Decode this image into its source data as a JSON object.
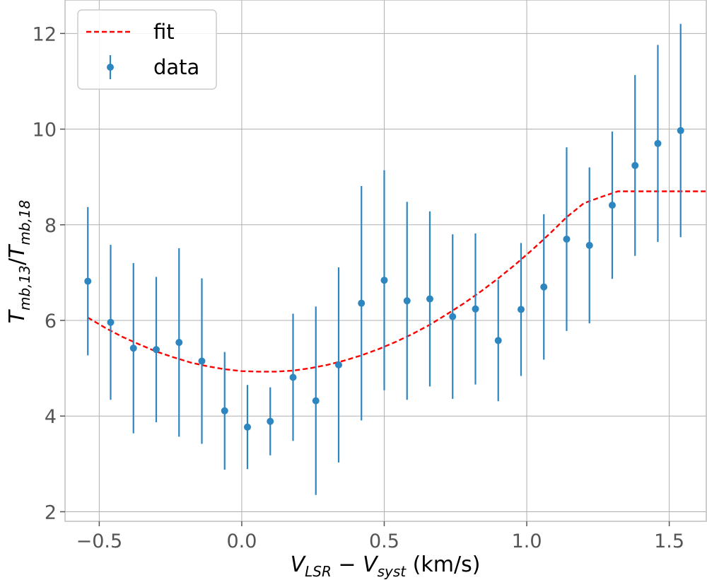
{
  "chart_data": {
    "type": "scatter",
    "title": "",
    "xlabel": "V_LSR − V_syst (km/s)",
    "ylabel": "T_mb,13/T_mb,18",
    "xlabel_parts": {
      "v1": "V",
      "sub1": "LSR",
      "minus": " − ",
      "v2": "V",
      "sub2": "syst",
      "unit": " (km/s)"
    },
    "ylabel_parts": {
      "t1": "T",
      "sub1": "mb,13",
      "slash": "/",
      "t2": "T",
      "sub2": "mb,18"
    },
    "xlim": [
      -0.62,
      1.63
    ],
    "ylim": [
      1.8,
      12.7
    ],
    "xticks": [
      -0.5,
      0.0,
      0.5,
      1.0,
      1.5
    ],
    "xtick_labels": [
      "−0.5",
      "0.0",
      "0.5",
      "1.0",
      "1.5"
    ],
    "yticks": [
      2,
      4,
      6,
      8,
      10,
      12
    ],
    "ytick_labels": [
      "2",
      "4",
      "6",
      "8",
      "10",
      "12"
    ],
    "grid": true,
    "legend": {
      "position": "top-left",
      "entries": [
        {
          "label": "fit",
          "style": "dashed-line",
          "color": "#ff0000"
        },
        {
          "label": "data",
          "style": "errorbar-point",
          "color": "#2e86c1"
        }
      ]
    },
    "data_series": {
      "name": "data",
      "color": "#2e86c1",
      "x": [
        -0.54,
        -0.46,
        -0.38,
        -0.3,
        -0.22,
        -0.14,
        -0.06,
        0.02,
        0.1,
        0.18,
        0.26,
        0.34,
        0.42,
        0.5,
        0.58,
        0.66,
        0.74,
        0.82,
        0.9,
        0.98,
        1.06,
        1.14,
        1.22,
        1.3,
        1.38,
        1.46,
        1.54
      ],
      "y": [
        6.82,
        5.96,
        5.42,
        5.39,
        5.54,
        5.15,
        4.11,
        3.77,
        3.89,
        4.81,
        4.32,
        5.07,
        6.36,
        6.84,
        6.41,
        6.45,
        6.08,
        6.24,
        5.58,
        6.23,
        6.7,
        7.7,
        7.57,
        8.41,
        9.24,
        9.7,
        9.97
      ],
      "yerr": [
        1.55,
        1.62,
        1.78,
        1.52,
        1.97,
        1.73,
        1.23,
        0.88,
        0.71,
        1.33,
        1.97,
        2.04,
        2.45,
        2.3,
        2.07,
        1.83,
        1.72,
        1.58,
        1.27,
        1.39,
        1.52,
        1.92,
        1.63,
        1.54,
        1.89,
        2.06,
        2.23
      ]
    },
    "fit_series": {
      "name": "fit",
      "color": "#ff0000",
      "style": "dashed",
      "x": [
        -0.54,
        -0.48,
        -0.42,
        -0.36,
        -0.3,
        -0.24,
        -0.18,
        -0.12,
        -0.06,
        0.0,
        0.06,
        0.12,
        0.18,
        0.24,
        0.3,
        0.36,
        0.42,
        0.48,
        0.54,
        0.6,
        0.66,
        0.72,
        0.78,
        0.84,
        0.9,
        0.96,
        1.02,
        1.08,
        1.14,
        1.2,
        1.26,
        1.32,
        1.4,
        1.5,
        1.63
      ],
      "y": [
        6.06,
        5.85,
        5.66,
        5.5,
        5.35,
        5.23,
        5.12,
        5.04,
        4.98,
        4.94,
        4.93,
        4.93,
        4.95,
        5.0,
        5.07,
        5.16,
        5.27,
        5.4,
        5.55,
        5.72,
        5.91,
        6.13,
        6.36,
        6.61,
        6.88,
        7.17,
        7.48,
        7.81,
        8.16,
        8.45,
        8.58,
        8.7,
        8.7,
        8.7,
        8.7
      ]
    }
  }
}
